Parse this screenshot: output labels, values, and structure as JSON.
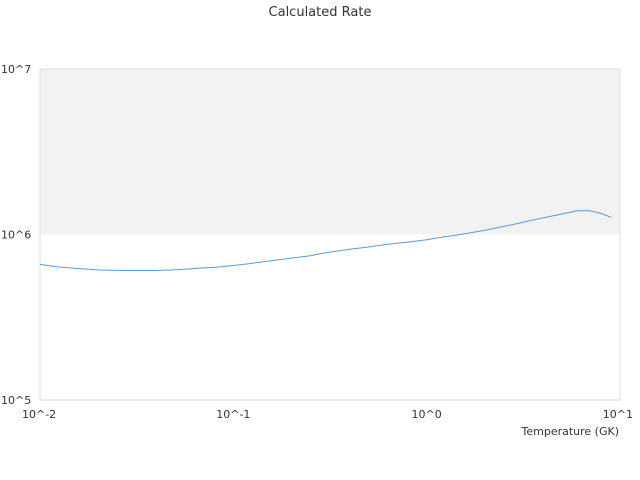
{
  "chart_data": {
    "type": "line",
    "title": "Calculated Rate",
    "xlabel": "Temperature (GK)",
    "ylabel": "",
    "x_scale": "log",
    "y_scale": "log",
    "xlim": [
      0.01,
      10
    ],
    "ylim": [
      100000,
      10000000
    ],
    "x_ticks": [
      {
        "value": 0.01,
        "label": "10^-2"
      },
      {
        "value": 0.1,
        "label": "10^-1"
      },
      {
        "value": 1,
        "label": "10^0"
      },
      {
        "value": 10,
        "label": "10^1"
      }
    ],
    "y_ticks": [
      {
        "value": 100000,
        "label": "10^5"
      },
      {
        "value": 1000000,
        "label": "10^6"
      },
      {
        "value": 10000000,
        "label": "10^7"
      }
    ],
    "shaded_band": {
      "y_from": 1000000,
      "y_to": 10000000,
      "color": "#f2f2f2"
    },
    "grid": false,
    "legend": "none",
    "line_color": "#5b9bd5",
    "series": [
      {
        "x": [
          0.01,
          0.012,
          0.015,
          0.018,
          0.02,
          0.025,
          0.03,
          0.035,
          0.04,
          0.05,
          0.06,
          0.07,
          0.08,
          0.1,
          0.12,
          0.15,
          0.2,
          0.25,
          0.3,
          0.4,
          0.5,
          0.6,
          0.7,
          0.8,
          1.0,
          1.2,
          1.5,
          2.0,
          2.5,
          3.0,
          3.5,
          4.0,
          5.0,
          6.0,
          7.0,
          8.0,
          9.0
        ],
        "y": [
          660000,
          640000,
          625000,
          617000,
          610000,
          607000,
          606000,
          606000,
          606000,
          612000,
          620000,
          628000,
          633000,
          650000,
          665000,
          690000,
          720000,
          745000,
          775000,
          815000,
          840000,
          868000,
          885000,
          900000,
          930000,
          965000,
          1000000,
          1060000,
          1120000,
          1170000,
          1220000,
          1260000,
          1330000,
          1390000,
          1390000,
          1340000,
          1270000
        ]
      }
    ]
  }
}
